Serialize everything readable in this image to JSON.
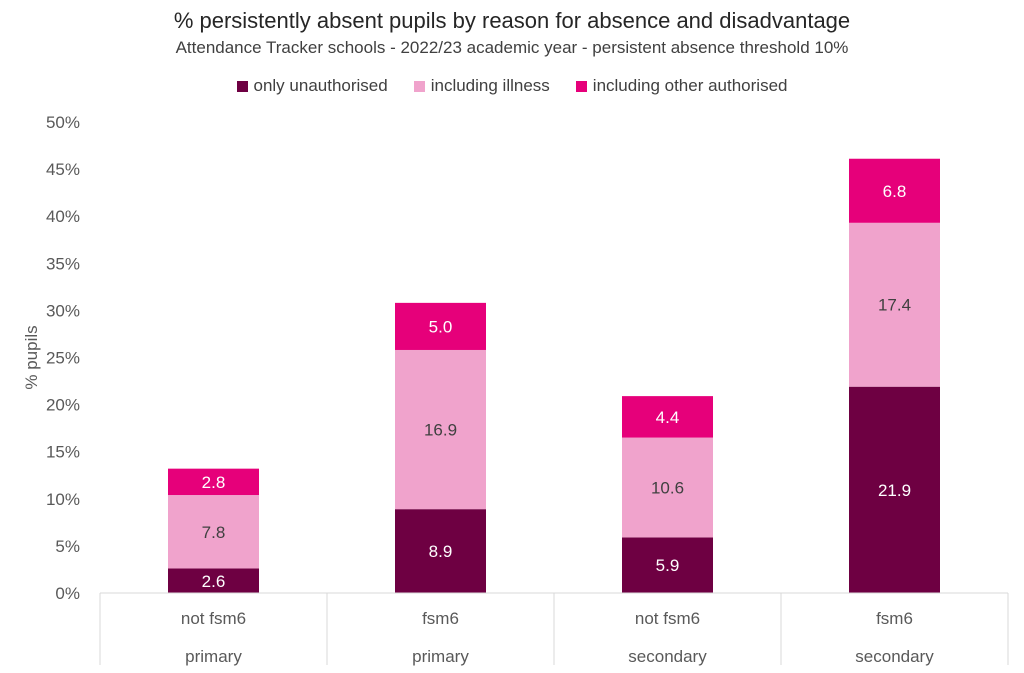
{
  "chart_data": {
    "type": "bar",
    "stacked": true,
    "title": "% persistently absent pupils by reason for absence and disadvantage",
    "subtitle": "Attendance Tracker schools - 2022/23 academic year - persistent absence threshold 10%",
    "ylabel": "% pupils",
    "ylim": [
      0,
      50
    ],
    "yticks": [
      "0%",
      "5%",
      "10%",
      "15%",
      "20%",
      "25%",
      "30%",
      "35%",
      "40%",
      "45%",
      "50%"
    ],
    "grid": false,
    "legend_position": "top",
    "categories": [
      {
        "inner": "not fsm6",
        "outer": "primary"
      },
      {
        "inner": "fsm6",
        "outer": "primary"
      },
      {
        "inner": "not fsm6",
        "outer": "secondary"
      },
      {
        "inner": "fsm6",
        "outer": "secondary"
      }
    ],
    "series": [
      {
        "name": "only unauthorised",
        "color": "#6e0042",
        "label_color": "#ffffff",
        "values": [
          2.6,
          8.9,
          5.9,
          21.9
        ],
        "labels": [
          "2.6",
          "8.9",
          "5.9",
          "21.9"
        ]
      },
      {
        "name": "including illness",
        "color": "#f0a3cc",
        "label_color": "#404040",
        "values": [
          7.8,
          16.9,
          10.6,
          17.4
        ],
        "labels": [
          "7.8",
          "16.9",
          "10.6",
          "17.4"
        ]
      },
      {
        "name": "including other authorised",
        "color": "#e6007a",
        "label_color": "#ffffff",
        "values": [
          2.8,
          5.0,
          4.4,
          6.8
        ],
        "labels": [
          "2.8",
          "5.0",
          "4.4",
          "6.8"
        ]
      }
    ]
  }
}
